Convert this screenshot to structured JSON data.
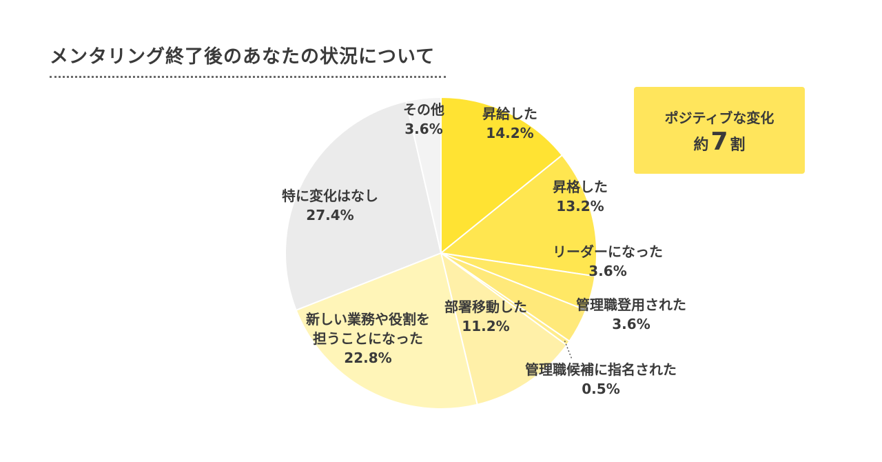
{
  "title": "メンタリング終了後のあなたの状況について",
  "badge": {
    "line1": "ポジティブな変化",
    "prefix": "約",
    "number": "7",
    "suffix": "割"
  },
  "chart_data": {
    "type": "pie",
    "start": "12 o'clock",
    "direction": "clockwise",
    "slices": [
      {
        "label": "昇給した",
        "value": 14.2,
        "value_label": "14.2%",
        "color": "#ffe333"
      },
      {
        "label": "昇格した",
        "value": 13.2,
        "value_label": "13.2%",
        "color": "#ffe650"
      },
      {
        "label": "リーダーになった",
        "value": 3.6,
        "value_label": "3.6%",
        "color": "#ffe865"
      },
      {
        "label": "管理職登用された",
        "value": 3.6,
        "value_label": "3.6%",
        "color": "#ffe97a"
      },
      {
        "label": "管理職候補に指名された",
        "value": 0.5,
        "value_label": "0.5%",
        "color": "#ffec8c"
      },
      {
        "label": "部署移動した",
        "value": 11.2,
        "value_label": "11.2%",
        "color": "#fff0a8"
      },
      {
        "label": "新しい業務や役割を担うことになった",
        "label_lines": [
          "新しい業務や役割を",
          "担うことになった"
        ],
        "value": 22.8,
        "value_label": "22.8%",
        "color": "#fff5b8"
      },
      {
        "label": "特に変化はなし",
        "value": 27.4,
        "value_label": "27.4%",
        "color": "#ebebeb"
      },
      {
        "label": "その他",
        "value": 3.6,
        "value_label": "3.6%",
        "color": "#f3f3f3"
      }
    ]
  }
}
